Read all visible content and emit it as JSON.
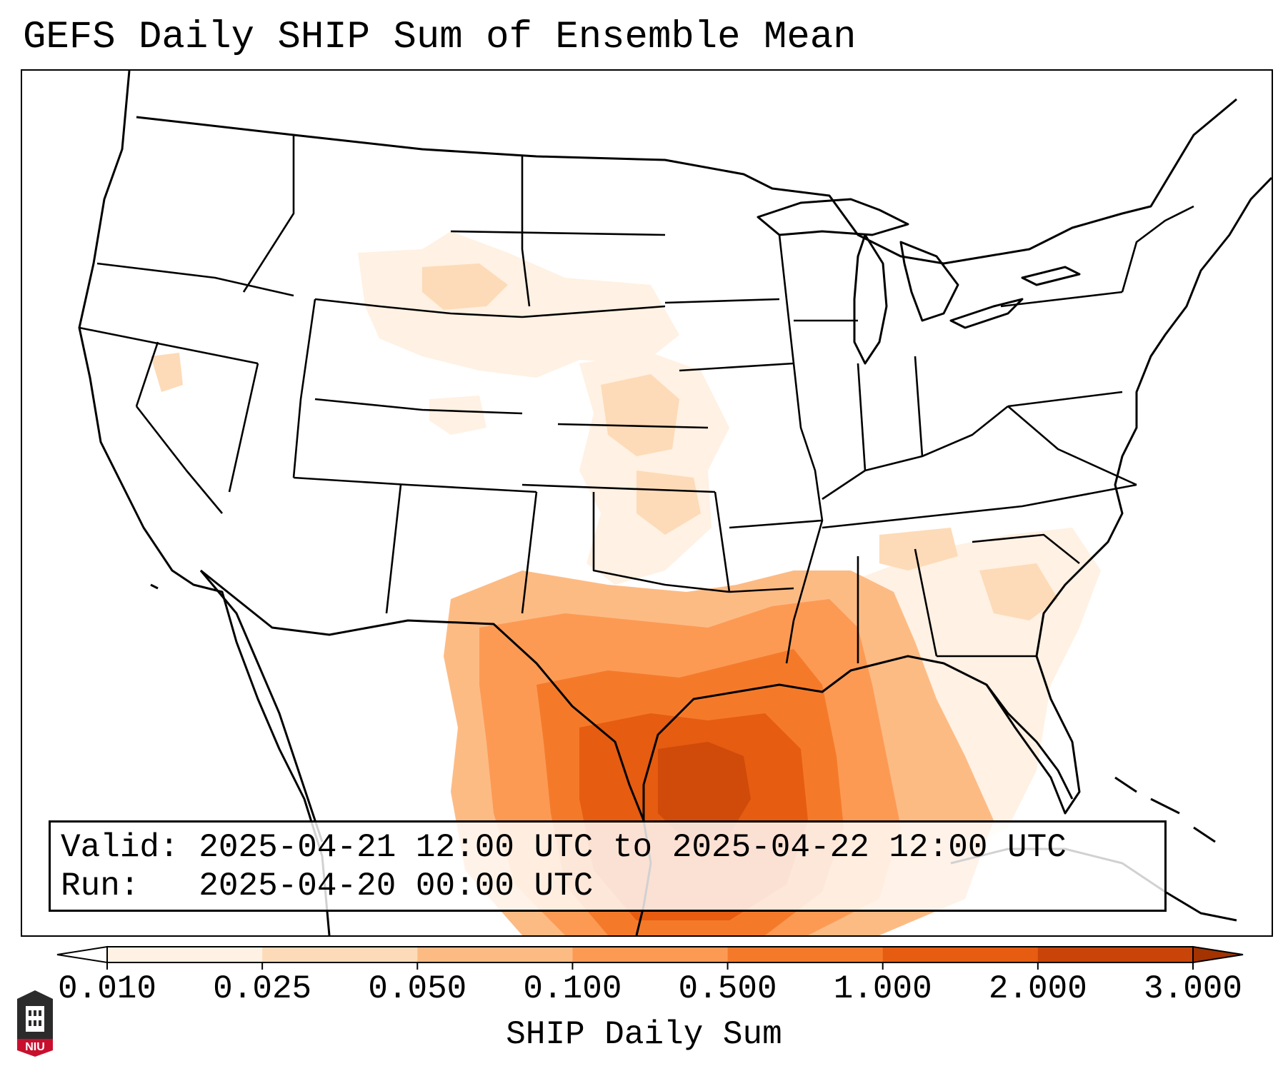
{
  "title": "GEFS Daily SHIP Sum of Ensemble Mean",
  "info": {
    "valid_label": "Valid:",
    "valid_value": "2025-04-21 12:00 UTC to 2025-04-22 12:00 UTC",
    "run_label": "Run:",
    "run_value": "2025-04-20 00:00 UTC"
  },
  "colorbar": {
    "label": "SHIP Daily Sum",
    "ticks": [
      "0.010",
      "0.025",
      "0.050",
      "0.100",
      "0.500",
      "1.000",
      "2.000",
      "3.000"
    ],
    "colors": [
      "#fff1e3",
      "#fddbb8",
      "#fdbb84",
      "#fc9a54",
      "#f47a2a",
      "#e65c10",
      "#c84409"
    ],
    "extend_low_color": "#ffffff",
    "extend_high_color": "#a33300"
  },
  "logo": {
    "text": "NIU",
    "icon": "niu-logo-icon",
    "color": "#c8102e"
  },
  "map": {
    "projection": "Lambert conformal, CONUS",
    "shading_colors": {
      "lightest": "#fff1e3",
      "light": "#fddbb8",
      "medium": "#fdbb84",
      "orange": "#fc9a54",
      "dark_orange": "#f47a2a",
      "red_orange": "#e65c10",
      "darkest": "#d04b0a"
    }
  }
}
